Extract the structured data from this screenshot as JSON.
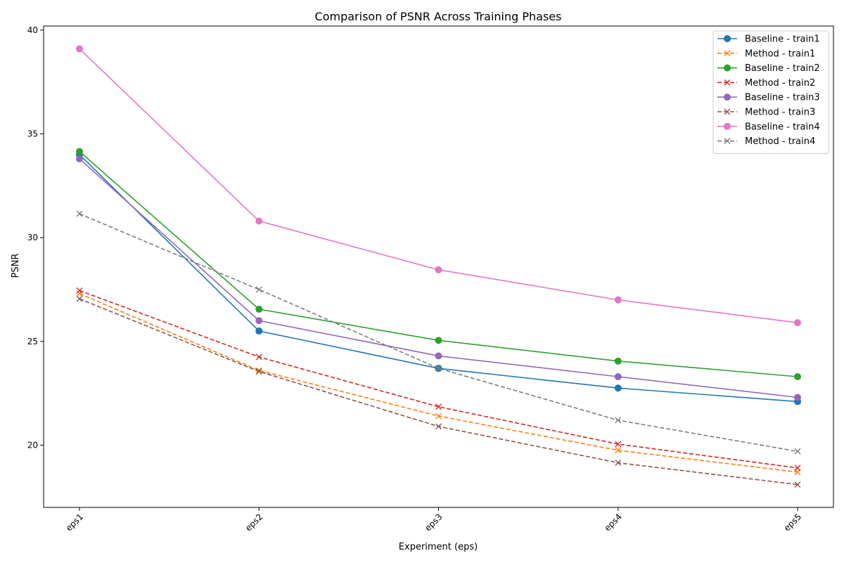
{
  "chart_data": {
    "type": "line",
    "title": "Comparison of PSNR Across Training Phases",
    "xlabel": "Experiment (eps)",
    "ylabel": "PSNR",
    "categories": [
      "eps1",
      "eps2",
      "eps3",
      "eps4",
      "eps5"
    ],
    "ylim": [
      17.0,
      40.2
    ],
    "yticks": [
      20,
      25,
      30,
      35,
      40
    ],
    "grid": false,
    "legend_position": "top-right",
    "series": [
      {
        "name": "Baseline - train1",
        "values": [
          34.0,
          25.5,
          23.7,
          22.75,
          22.1
        ],
        "color": "#1f77b4",
        "dashed": false,
        "marker": "circle"
      },
      {
        "name": "Method - train1",
        "values": [
          27.3,
          23.6,
          21.4,
          19.75,
          18.7
        ],
        "color": "#ff7f0e",
        "dashed": true,
        "marker": "x"
      },
      {
        "name": "Baseline - train2",
        "values": [
          34.15,
          26.55,
          25.05,
          24.05,
          23.3
        ],
        "color": "#2ca02c",
        "dashed": false,
        "marker": "circle"
      },
      {
        "name": "Method - train2",
        "values": [
          27.45,
          24.25,
          21.85,
          20.05,
          18.9
        ],
        "color": "#d62728",
        "dashed": true,
        "marker": "x"
      },
      {
        "name": "Baseline - train3",
        "values": [
          33.8,
          26.0,
          24.3,
          23.3,
          22.3
        ],
        "color": "#9467bd",
        "dashed": false,
        "marker": "circle"
      },
      {
        "name": "Method - train3",
        "values": [
          27.05,
          23.55,
          20.9,
          19.15,
          18.1
        ],
        "color": "#8c564b",
        "dashed": true,
        "marker": "x"
      },
      {
        "name": "Baseline - train4",
        "values": [
          39.1,
          30.8,
          28.45,
          27.0,
          25.9
        ],
        "color": "#e377c2",
        "dashed": false,
        "marker": "circle"
      },
      {
        "name": "Method - train4",
        "values": [
          31.15,
          27.5,
          23.7,
          21.2,
          19.7
        ],
        "color": "#7f7f7f",
        "dashed": true,
        "marker": "x"
      }
    ]
  }
}
